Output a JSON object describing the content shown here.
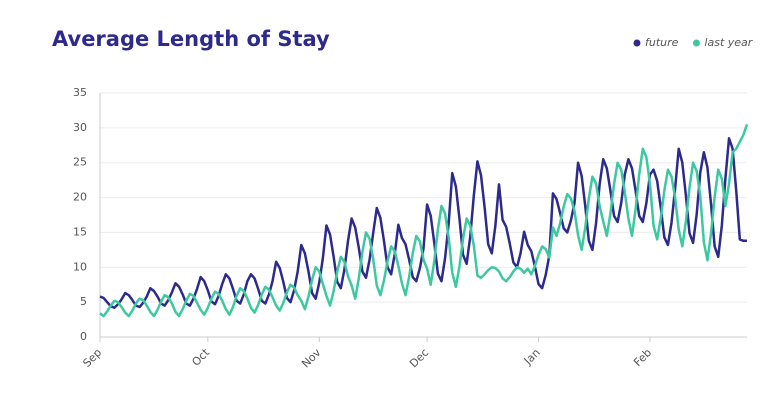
{
  "chart_data": {
    "type": "line",
    "title": "Average Length of Stay",
    "legend": "top-right",
    "grid": true,
    "categories": [
      "Sep",
      null,
      null,
      null,
      null,
      null,
      null,
      null,
      null,
      null,
      null,
      null,
      null,
      null,
      null,
      null,
      null,
      null,
      null,
      null,
      null,
      null,
      null,
      null,
      null,
      null,
      null,
      null,
      null,
      null,
      "Oct",
      null,
      null,
      null,
      null,
      null,
      null,
      null,
      null,
      null,
      null,
      null,
      null,
      null,
      null,
      null,
      null,
      null,
      null,
      null,
      null,
      null,
      null,
      null,
      null,
      null,
      null,
      null,
      null,
      null,
      null,
      "Nov",
      null,
      null,
      null,
      null,
      null,
      null,
      null,
      null,
      null,
      null,
      null,
      null,
      null,
      null,
      null,
      null,
      null,
      null,
      null,
      null,
      null,
      null,
      null,
      null,
      null,
      null,
      null,
      null,
      null,
      "Dec",
      null,
      null,
      null,
      null,
      null,
      null,
      null,
      null,
      null,
      null,
      null,
      null,
      null,
      null,
      null,
      null,
      null,
      null,
      null,
      null,
      null,
      null,
      null,
      null,
      null,
      null,
      null,
      null,
      null,
      null,
      "Jan",
      null,
      null,
      null,
      null,
      null,
      null,
      null,
      null,
      null,
      null,
      null,
      null,
      null,
      null,
      null,
      null,
      null,
      null,
      null,
      null,
      null,
      null,
      null,
      null,
      null,
      null,
      null,
      null,
      null,
      null,
      "Feb",
      null,
      null,
      null,
      null,
      null,
      null,
      null,
      null,
      null,
      null,
      null,
      null,
      null,
      null,
      null,
      null,
      null,
      null,
      null,
      null,
      null,
      null,
      null,
      null,
      null,
      null,
      null
    ],
    "ylim": [
      0,
      35
    ],
    "yticks": [
      0,
      5,
      10,
      15,
      20,
      25,
      30,
      35
    ],
    "series": [
      {
        "name": "future",
        "color": "#2e2a8c",
        "values": [
          5.8,
          5.6,
          5.0,
          4.4,
          4.2,
          4.7,
          5.4,
          6.3,
          6.0,
          5.3,
          4.5,
          4.3,
          4.9,
          5.8,
          7.0,
          6.6,
          5.8,
          4.8,
          4.5,
          5.3,
          6.4,
          7.7,
          7.2,
          6.1,
          4.8,
          4.5,
          5.5,
          6.9,
          8.6,
          8.0,
          6.7,
          5.1,
          4.7,
          5.9,
          7.6,
          9.0,
          8.4,
          6.9,
          5.2,
          4.8,
          6.1,
          8.0,
          9.0,
          8.4,
          6.9,
          5.2,
          4.8,
          6.1,
          8.0,
          10.8,
          9.9,
          7.9,
          5.6,
          5.0,
          6.7,
          9.4,
          13.2,
          12.0,
          9.4,
          6.3,
          5.5,
          7.8,
          11.3,
          16.0,
          14.7,
          11.5,
          7.9,
          7.0,
          9.7,
          13.8,
          17.0,
          15.7,
          12.8,
          9.4,
          8.5,
          11.1,
          14.9,
          18.5,
          17.1,
          13.8,
          10.0,
          9.0,
          11.9,
          16.1,
          14.2,
          13.3,
          11.1,
          8.6,
          8.0,
          9.9,
          12.7,
          19.0,
          17.4,
          13.5,
          9.1,
          8.0,
          11.3,
          16.3,
          23.5,
          21.6,
          17.0,
          11.8,
          10.5,
          14.4,
          20.3,
          25.2,
          23.2,
          18.6,
          13.3,
          12.0,
          16.0,
          21.9,
          16.8,
          15.8,
          13.4,
          10.7,
          10.0,
          12.0,
          15.1,
          13.2,
          12.3,
          10.1,
          7.6,
          7.0,
          8.9,
          11.7,
          20.6,
          19.8,
          17.8,
          15.6,
          15.0,
          16.7,
          19.2,
          25.0,
          23.1,
          18.8,
          13.8,
          12.5,
          16.3,
          21.9,
          25.5,
          24.2,
          21.0,
          17.4,
          16.5,
          19.2,
          23.3,
          25.5,
          24.2,
          21.0,
          17.4,
          16.5,
          19.2,
          23.3,
          24.0,
          22.4,
          18.6,
          14.3,
          13.2,
          16.4,
          21.3,
          27.0,
          25.0,
          20.3,
          14.9,
          13.5,
          17.6,
          23.6,
          26.5,
          24.3,
          19.0,
          13.0,
          11.5,
          16.0,
          22.8,
          28.5,
          27.0,
          21.0,
          14.0,
          13.8,
          13.8
        ]
      },
      {
        "name": "last year",
        "color": "#3cc9a0",
        "values": [
          3.4,
          3.0,
          3.7,
          4.5,
          5.2,
          5.0,
          4.3,
          3.5,
          3.0,
          3.8,
          4.8,
          5.5,
          5.3,
          4.5,
          3.6,
          3.0,
          3.9,
          5.1,
          6.0,
          5.7,
          4.8,
          3.6,
          3.0,
          4.0,
          5.2,
          6.2,
          5.9,
          4.9,
          3.9,
          3.2,
          4.2,
          5.5,
          6.5,
          6.2,
          5.2,
          4.0,
          3.2,
          4.3,
          5.9,
          7.0,
          6.6,
          5.5,
          4.2,
          3.5,
          4.6,
          6.1,
          7.2,
          6.8,
          5.7,
          4.5,
          3.8,
          4.9,
          6.4,
          7.5,
          7.1,
          6.0,
          5.2,
          4.0,
          5.8,
          8.2,
          10.0,
          9.4,
          7.6,
          5.9,
          4.5,
          6.6,
          9.4,
          11.5,
          10.8,
          8.7,
          7.4,
          5.5,
          8.4,
          12.2,
          15.0,
          14.1,
          11.2,
          7.4,
          6.0,
          8.1,
          10.9,
          13.0,
          12.3,
          10.2,
          7.7,
          6.0,
          8.6,
          12.0,
          14.5,
          13.7,
          11.1,
          9.8,
          7.5,
          10.9,
          15.4,
          18.8,
          17.7,
          14.3,
          9.2,
          7.2,
          10.1,
          14.1,
          17.0,
          16.0,
          13.1,
          8.8,
          8.5,
          9.0,
          9.6,
          10.0,
          9.9,
          9.4,
          8.4,
          8.0,
          8.6,
          9.4,
          10.0,
          9.8,
          9.2,
          9.8,
          9.0,
          10.2,
          11.8,
          13.0,
          12.6,
          11.4,
          15.7,
          14.5,
          16.3,
          18.7,
          20.5,
          19.9,
          18.1,
          14.6,
          12.5,
          15.7,
          19.9,
          23.0,
          22.0,
          18.8,
          16.6,
          14.5,
          17.7,
          21.9,
          25.0,
          24.0,
          20.8,
          17.0,
          14.5,
          18.3,
          23.3,
          27.0,
          25.8,
          22.0,
          16.0,
          14.0,
          17.0,
          21.0,
          24.0,
          23.0,
          20.0,
          15.4,
          13.0,
          16.6,
          21.4,
          25.0,
          23.8,
          20.2,
          13.6,
          11.0,
          14.9,
          20.1,
          24.0,
          22.7,
          18.8,
          22.0,
          26.5,
          27.0,
          28.0,
          29.0,
          30.5
        ]
      }
    ]
  }
}
